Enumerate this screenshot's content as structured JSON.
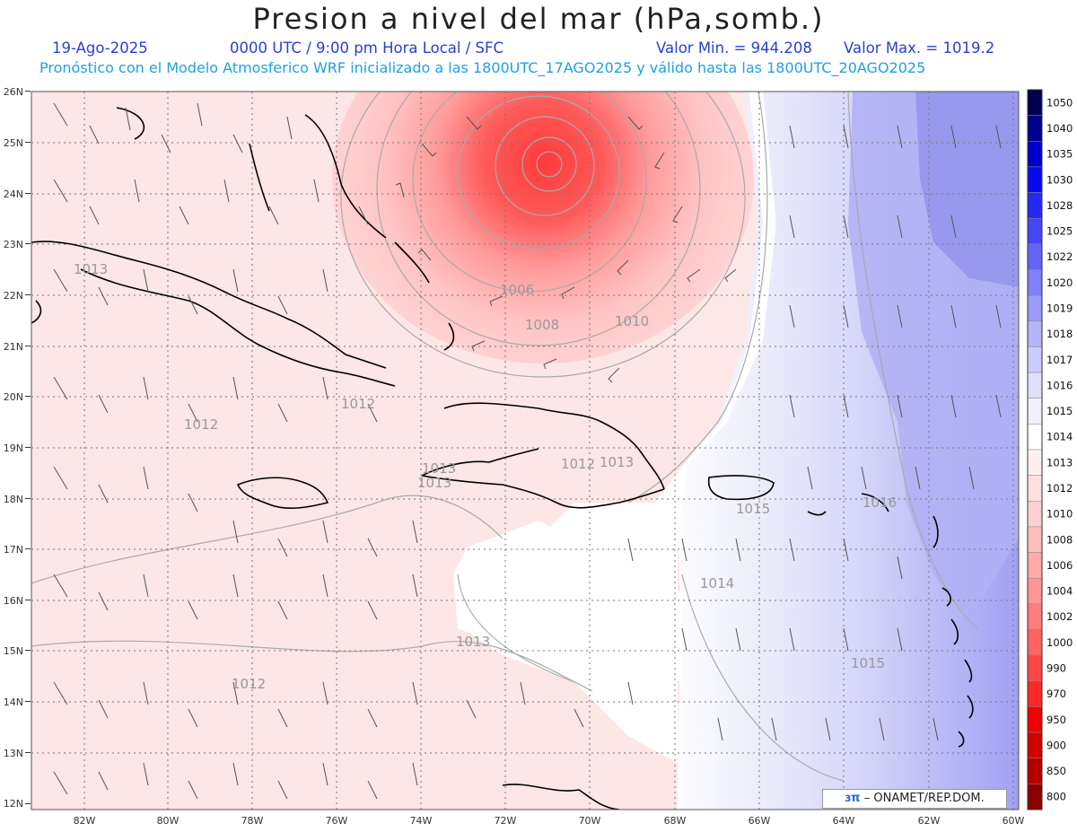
{
  "header": {
    "title": "Presion a nivel del mar (hPa,somb.)",
    "date": "19-Ago-2025",
    "time": "0000 UTC / 9:00 pm Hora Local / SFC",
    "min": "Valor Min. = 944.208",
    "max": "Valor Max. = 1019.2",
    "model": "Pronóstico con el Modelo Atmosferico WRF inicializado a las 1800UTC_17AGO2025 y válido hasta las 1800UTC_20AGO2025"
  },
  "map": {
    "lat_labels": [
      "26N",
      "25N",
      "24N",
      "23N",
      "22N",
      "21N",
      "20N",
      "19N",
      "18N",
      "17N",
      "16N",
      "15N",
      "14N",
      "13N",
      "12N"
    ],
    "lon_labels": [
      "82W",
      "80W",
      "78W",
      "76W",
      "74W",
      "72W",
      "70W",
      "68W",
      "66W",
      "64W",
      "62W",
      "60W"
    ],
    "contour_labels": [
      {
        "text": "1006"
      },
      {
        "text": "1008"
      },
      {
        "text": "1010"
      },
      {
        "text": "1012"
      },
      {
        "text": "1012"
      },
      {
        "text": "1012"
      },
      {
        "text": "1013"
      },
      {
        "text": "1013"
      },
      {
        "text": "1013"
      },
      {
        "text": "1013"
      },
      {
        "text": "1013"
      },
      {
        "text": "1014"
      },
      {
        "text": "1015"
      },
      {
        "text": "1015"
      },
      {
        "text": "1016"
      },
      {
        "text": "1012"
      }
    ],
    "colors": {
      "low_center": "#ff2a2a",
      "high": "#8c8cf0"
    }
  },
  "colorbar": {
    "levels": [
      "1050",
      "1040",
      "1035",
      "1030",
      "1028",
      "1025",
      "1022",
      "1020",
      "1019",
      "1018",
      "1017",
      "1016",
      "1015",
      "1014",
      "1013",
      "1012",
      "1010",
      "1008",
      "1006",
      "1004",
      "1002",
      "1000",
      "990",
      "970",
      "950",
      "900",
      "850",
      "800"
    ],
    "colors": [
      "#000050",
      "#00008c",
      "#0000c8",
      "#0a0af0",
      "#2828f5",
      "#4646f8",
      "#6464f8",
      "#8080f8",
      "#9a9af8",
      "#b4b4fa",
      "#ccccfc",
      "#e0e0fd",
      "#f0f0fe",
      "#ffffff",
      "#fff0f0",
      "#ffe0e0",
      "#ffd0d0",
      "#ffbebe",
      "#ffaaaa",
      "#ff9696",
      "#ff7d7d",
      "#ff6464",
      "#ff4646",
      "#ff2828",
      "#f00000",
      "#d20000",
      "#b40000",
      "#8c0000"
    ]
  },
  "credit": {
    "logo": "ɜπ",
    "text": "– ONAMET/REP.DOM."
  }
}
